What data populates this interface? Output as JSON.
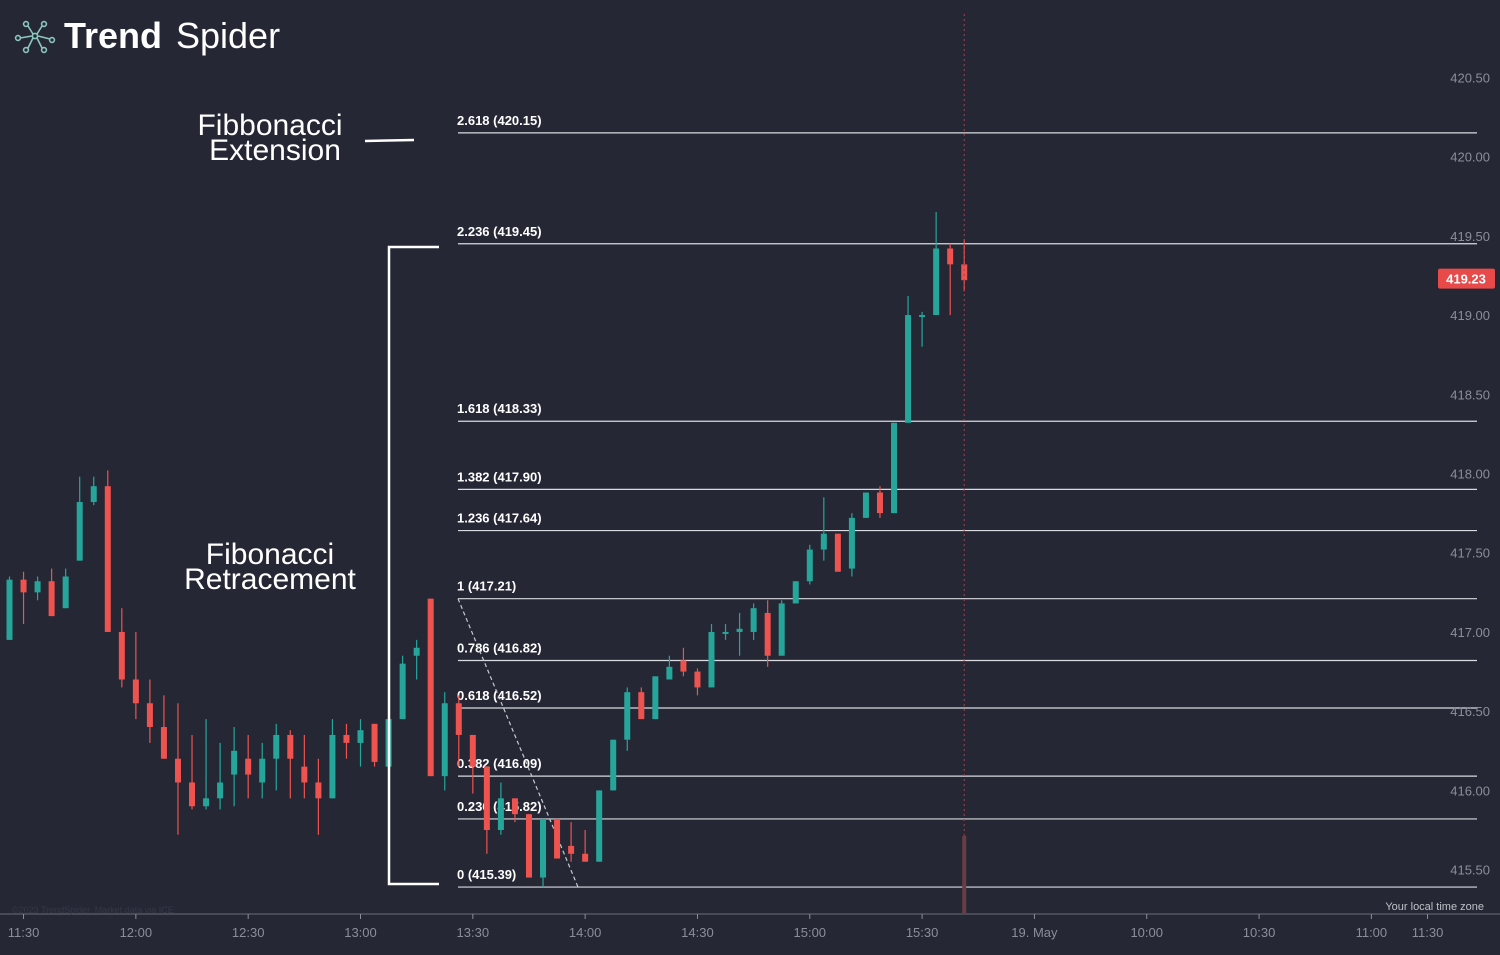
{
  "brand": {
    "name_bold": "Trend",
    "name_light": "Spider",
    "logo_icon": "spider-network-icon"
  },
  "colors": {
    "background": "#252734",
    "up": "#26a69a",
    "down": "#ef5350",
    "fib_line": "#d9dbe0",
    "axis_text": "#8b8e9a",
    "price_badge": "#e84a4a"
  },
  "annotations": {
    "extension_line1": "Fibbonacci",
    "extension_line2": "Extension",
    "retracement_line1": "Fibonacci",
    "retracement_line2": "Retracement"
  },
  "footer": {
    "timezone_label": "Your local time zone",
    "copyright": "©2023 TrendSpider. Market data via ICE"
  },
  "chart_data": {
    "type": "candlestick",
    "ylim": [
      415.22,
      420.9
    ],
    "y_ticks": [
      "415.50",
      "416.00",
      "416.50",
      "417.00",
      "417.50",
      "418.00",
      "418.50",
      "419.00",
      "419.50",
      "420.00",
      "420.50"
    ],
    "x_ticks": [
      {
        "label": "11:30",
        "bar": 1
      },
      {
        "label": "12:00",
        "bar": 9
      },
      {
        "label": "12:30",
        "bar": 17
      },
      {
        "label": "13:00",
        "bar": 25
      },
      {
        "label": "13:30",
        "bar": 33
      },
      {
        "label": "14:00",
        "bar": 41
      },
      {
        "label": "14:30",
        "bar": 49
      },
      {
        "label": "15:00",
        "bar": 57
      },
      {
        "label": "15:30",
        "bar": 65
      },
      {
        "label": "19. May",
        "bar": 73
      },
      {
        "label": "10:00",
        "bar": 81
      },
      {
        "label": "10:30",
        "bar": 89
      },
      {
        "label": "11:00",
        "bar": 97
      },
      {
        "label": "11:30",
        "bar": 101
      }
    ],
    "last_price": "419.23",
    "last_price_value": 419.23,
    "fib_levels": [
      {
        "ratio": "0",
        "value": 415.39,
        "label": "0 (415.39)"
      },
      {
        "ratio": "0.236",
        "value": 415.82,
        "label": "0.236 (415.82)"
      },
      {
        "ratio": "0.382",
        "value": 416.09,
        "label": "0.382 (416.09)"
      },
      {
        "ratio": "0.618",
        "value": 416.52,
        "label": "0.618 (416.52)"
      },
      {
        "ratio": "0.786",
        "value": 416.82,
        "label": "0.786 (416.82)"
      },
      {
        "ratio": "1",
        "value": 417.21,
        "label": "1 (417.21)"
      },
      {
        "ratio": "1.236",
        "value": 417.64,
        "label": "1.236 (417.64)"
      },
      {
        "ratio": "1.382",
        "value": 417.9,
        "label": "1.382 (417.90)"
      },
      {
        "ratio": "1.618",
        "value": 418.33,
        "label": "1.618 (418.33)"
      },
      {
        "ratio": "2.236",
        "value": 419.45,
        "label": "2.236 (419.45)"
      },
      {
        "ratio": "2.618",
        "value": 420.15,
        "label": "2.618 (420.15)"
      }
    ],
    "candles": [
      [
        416.95,
        417.35,
        416.95,
        417.33
      ],
      [
        417.33,
        417.38,
        417.05,
        417.25
      ],
      [
        417.25,
        417.35,
        417.2,
        417.32
      ],
      [
        417.32,
        417.4,
        417.1,
        417.1
      ],
      [
        417.15,
        417.4,
        417.15,
        417.35
      ],
      [
        417.45,
        417.98,
        417.45,
        417.82
      ],
      [
        417.82,
        417.98,
        417.8,
        417.92
      ],
      [
        417.92,
        418.02,
        417.0,
        417.0
      ],
      [
        417.0,
        417.15,
        416.65,
        416.7
      ],
      [
        416.7,
        417.0,
        416.45,
        416.55
      ],
      [
        416.55,
        416.7,
        416.3,
        416.4
      ],
      [
        416.4,
        416.6,
        416.2,
        416.2
      ],
      [
        416.2,
        416.55,
        415.72,
        416.05
      ],
      [
        416.05,
        416.35,
        415.88,
        415.9
      ],
      [
        415.9,
        416.45,
        415.88,
        415.95
      ],
      [
        415.95,
        416.3,
        415.88,
        416.05
      ],
      [
        416.1,
        416.4,
        415.9,
        416.25
      ],
      [
        416.2,
        416.35,
        415.95,
        416.1
      ],
      [
        416.05,
        416.3,
        415.95,
        416.2
      ],
      [
        416.2,
        416.42,
        416.0,
        416.35
      ],
      [
        416.35,
        416.38,
        415.95,
        416.2
      ],
      [
        416.15,
        416.35,
        415.95,
        416.05
      ],
      [
        416.05,
        416.2,
        415.72,
        415.95
      ],
      [
        415.95,
        416.45,
        415.95,
        416.35
      ],
      [
        416.35,
        416.42,
        416.2,
        416.3
      ],
      [
        416.3,
        416.45,
        416.15,
        416.38
      ],
      [
        416.42,
        416.42,
        416.15,
        416.18
      ],
      [
        416.15,
        416.5,
        416.15,
        416.45
      ],
      [
        416.45,
        416.85,
        416.45,
        416.8
      ],
      [
        416.85,
        416.95,
        416.7,
        416.9
      ],
      [
        417.21,
        417.21,
        416.09,
        416.09
      ],
      [
        416.09,
        416.62,
        416.0,
        416.55
      ],
      [
        416.55,
        416.6,
        416.15,
        416.35
      ],
      [
        416.35,
        416.35,
        415.98,
        416.15
      ],
      [
        416.15,
        416.15,
        415.6,
        415.75
      ],
      [
        415.75,
        416.05,
        415.72,
        415.95
      ],
      [
        415.95,
        415.95,
        415.8,
        415.85
      ],
      [
        415.85,
        415.85,
        415.45,
        415.45
      ],
      [
        415.45,
        415.82,
        415.39,
        415.82
      ],
      [
        415.82,
        415.82,
        415.57,
        415.57
      ],
      [
        415.65,
        415.8,
        415.55,
        415.6
      ],
      [
        415.6,
        415.75,
        415.55,
        415.55
      ],
      [
        415.55,
        416.0,
        415.55,
        416.0
      ],
      [
        416.0,
        416.32,
        416.0,
        416.32
      ],
      [
        416.32,
        416.65,
        416.25,
        416.62
      ],
      [
        416.62,
        416.65,
        416.45,
        416.45
      ],
      [
        416.45,
        416.72,
        416.45,
        416.72
      ],
      [
        416.7,
        416.85,
        416.7,
        416.78
      ],
      [
        416.82,
        416.9,
        416.72,
        416.75
      ],
      [
        416.75,
        416.77,
        416.6,
        416.65
      ],
      [
        416.65,
        417.05,
        416.65,
        417.0
      ],
      [
        417.0,
        417.05,
        416.95,
        417.0
      ],
      [
        417.0,
        417.12,
        416.85,
        417.02
      ],
      [
        417.0,
        417.18,
        416.95,
        417.15
      ],
      [
        417.12,
        417.2,
        416.78,
        416.85
      ],
      [
        416.85,
        417.2,
        416.85,
        417.18
      ],
      [
        417.18,
        417.32,
        417.18,
        417.32
      ],
      [
        417.32,
        417.55,
        417.3,
        417.52
      ],
      [
        417.52,
        417.85,
        417.45,
        417.62
      ],
      [
        417.62,
        417.62,
        417.4,
        417.38
      ],
      [
        417.4,
        417.75,
        417.35,
        417.72
      ],
      [
        417.72,
        417.88,
        417.72,
        417.88
      ],
      [
        417.88,
        417.92,
        417.72,
        417.75
      ],
      [
        417.75,
        418.32,
        417.75,
        418.32
      ],
      [
        418.32,
        419.12,
        418.32,
        419.0
      ],
      [
        419.0,
        419.02,
        418.8,
        419.0
      ],
      [
        419.0,
        419.65,
        419.0,
        419.42
      ],
      [
        419.42,
        419.45,
        419.0,
        419.32
      ],
      [
        419.32,
        419.48,
        419.15,
        419.22
      ]
    ]
  }
}
